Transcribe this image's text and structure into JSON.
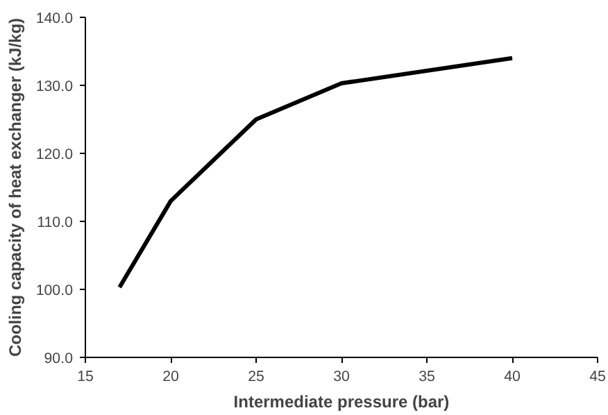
{
  "chart_data": {
    "type": "line",
    "xlabel": "Intermediate pressure (bar)",
    "ylabel": "Cooling capacity of heat exchanger (kJ/kg)",
    "x": [
      17,
      20,
      25,
      30,
      40
    ],
    "series": [
      {
        "color": "#000000",
        "values": [
          100.3,
          113.0,
          125.0,
          130.3,
          134.0
        ]
      }
    ],
    "xlim": [
      15,
      45
    ],
    "xticks": [
      15,
      20,
      25,
      30,
      35,
      40,
      45
    ],
    "ylim": [
      90,
      140
    ],
    "yticks": [
      {
        "value": 90,
        "label": "90.0"
      },
      {
        "value": 100,
        "label": "100.0"
      },
      {
        "value": 110,
        "label": "110.0"
      },
      {
        "value": 120,
        "label": "120.0"
      },
      {
        "value": 130,
        "label": "130.0"
      },
      {
        "value": 140,
        "label": "140.0"
      }
    ],
    "grid": false,
    "marker": "none",
    "line_style": "solid"
  }
}
